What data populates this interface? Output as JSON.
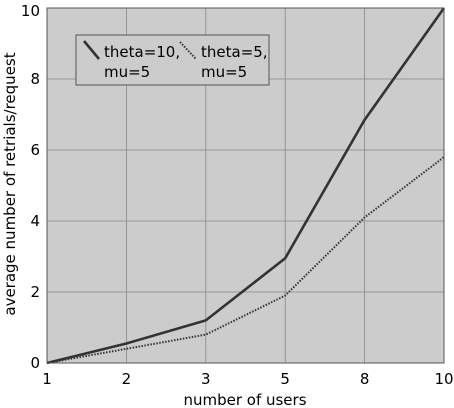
{
  "chart_data": {
    "type": "line",
    "categories": [
      "1",
      "2",
      "3",
      "5",
      "8",
      "10"
    ],
    "xlabel": "number of users",
    "ylabel": "average number of retrials/request",
    "ylim": [
      0,
      10
    ],
    "yticks": [
      0,
      2,
      4,
      6,
      8,
      10
    ],
    "grid": true,
    "legend_placement": "top-left",
    "colors": {
      "plot_background": "#cccccc",
      "grid": "#888888",
      "series_1": "#333333",
      "series_2": "#333333",
      "legend_background": "#cccccc"
    },
    "series": [
      {
        "name_lines": [
          "theta=10,",
          "mu=5"
        ],
        "style": "solid",
        "values": [
          0,
          0.55,
          1.2,
          2.95,
          6.85,
          10.0
        ]
      },
      {
        "name_lines": [
          "theta=5,",
          "mu=5"
        ],
        "style": "dotted",
        "values": [
          0,
          0.4,
          0.8,
          1.9,
          4.1,
          5.8
        ]
      }
    ]
  }
}
